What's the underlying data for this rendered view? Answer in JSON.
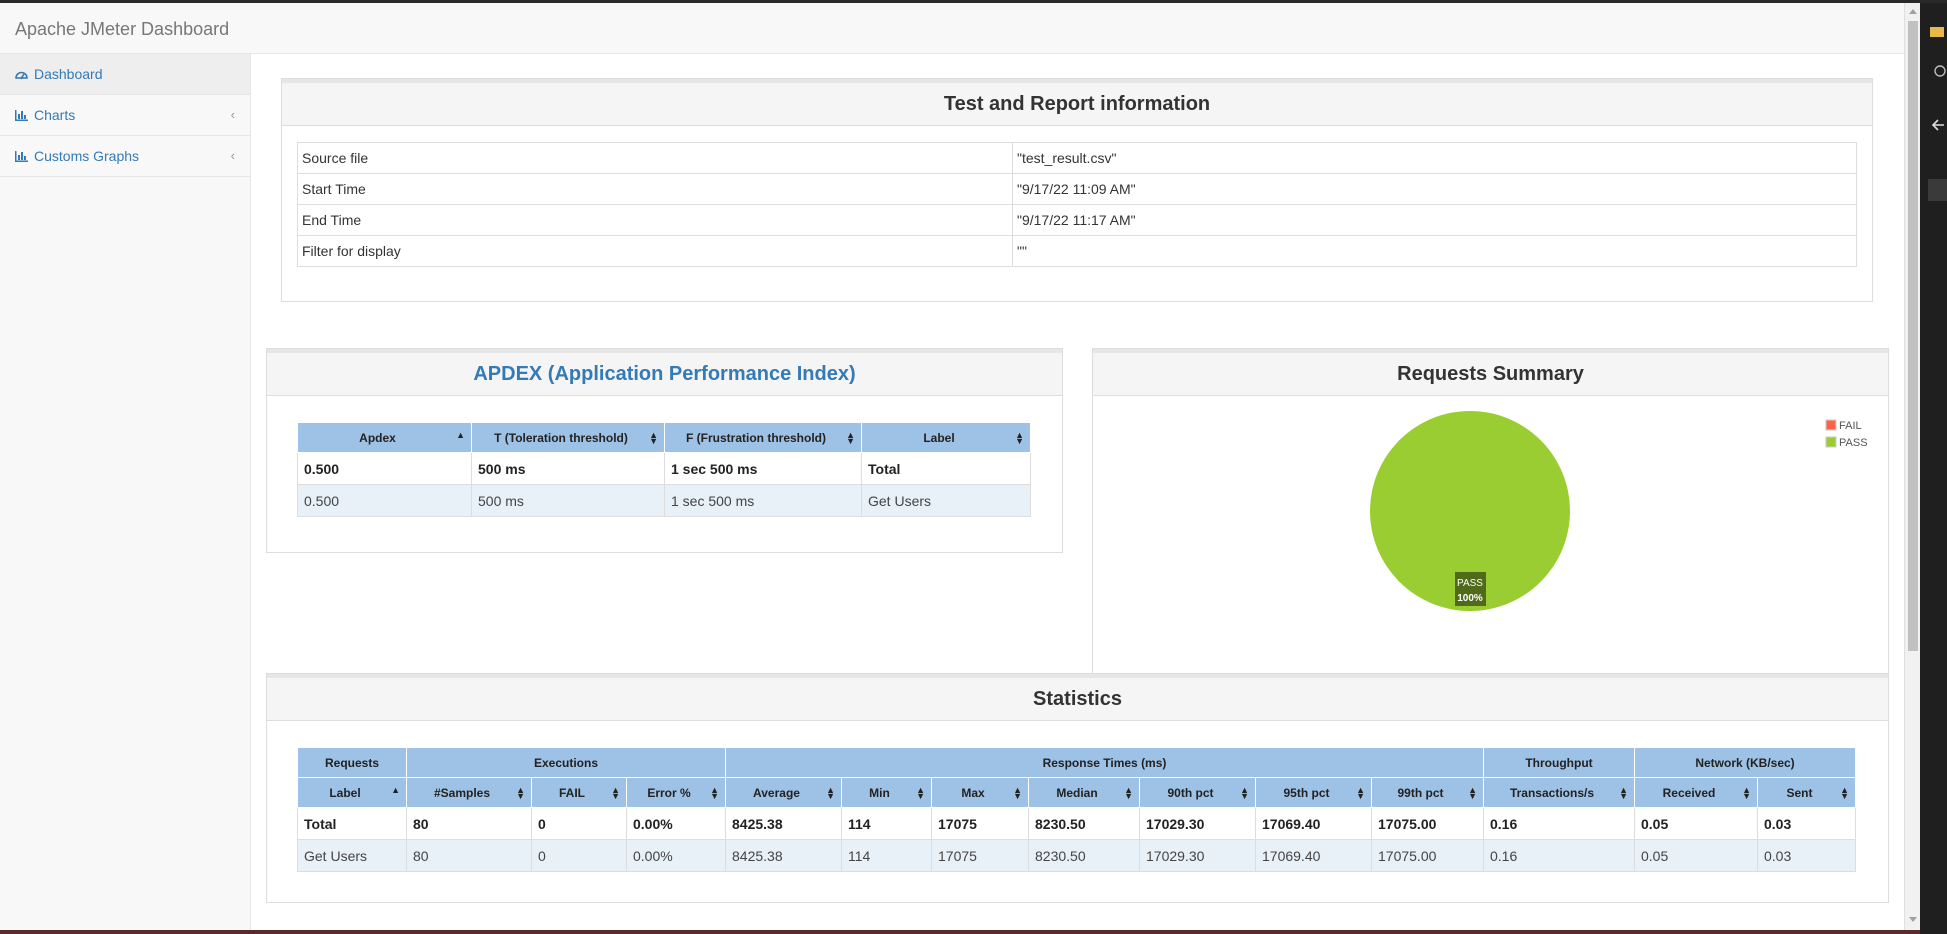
{
  "app": {
    "title": "Apache JMeter Dashboard"
  },
  "sidebar": {
    "items": [
      {
        "label": "Dashboard",
        "icon": "dashboard-icon"
      },
      {
        "label": "Charts",
        "icon": "bar-chart-icon"
      },
      {
        "label": "Customs Graphs",
        "icon": "bar-chart-icon"
      }
    ]
  },
  "info": {
    "title": "Test and Report information",
    "rows": [
      {
        "key": "Source file",
        "value": "\"test_result.csv\""
      },
      {
        "key": "Start Time",
        "value": "\"9/17/22 11:09 AM\""
      },
      {
        "key": "End Time",
        "value": "\"9/17/22 11:17 AM\""
      },
      {
        "key": "Filter for display",
        "value": "\"\""
      }
    ]
  },
  "apdex": {
    "title": "APDEX (Application Performance Index)",
    "headers": [
      "Apdex",
      "T (Toleration threshold)",
      "F (Frustration threshold)",
      "Label"
    ],
    "rows": [
      [
        "0.500",
        "500 ms",
        "1 sec 500 ms",
        "Total"
      ],
      [
        "0.500",
        "500 ms",
        "1 sec 500 ms",
        "Get Users"
      ]
    ]
  },
  "summary": {
    "title": "Requests Summary",
    "legend": [
      {
        "label": "FAIL",
        "color": "#ff6347"
      },
      {
        "label": "PASS",
        "color": "#9acd32"
      }
    ],
    "pie_label": "PASS",
    "pie_percent": "100%"
  },
  "chart_data": {
    "type": "pie",
    "title": "Requests Summary",
    "categories": [
      "FAIL",
      "PASS"
    ],
    "values": [
      0,
      100
    ]
  },
  "stats": {
    "title": "Statistics",
    "groups": [
      "Requests",
      "Executions",
      "Response Times (ms)",
      "Throughput",
      "Network (KB/sec)"
    ],
    "headers": [
      "Label",
      "#Samples",
      "FAIL",
      "Error %",
      "Average",
      "Min",
      "Max",
      "Median",
      "90th pct",
      "95th pct",
      "99th pct",
      "Transactions/s",
      "Received",
      "Sent"
    ],
    "rows": [
      [
        "Total",
        "80",
        "0",
        "0.00%",
        "8425.38",
        "114",
        "17075",
        "8230.50",
        "17029.30",
        "17069.40",
        "17075.00",
        "0.16",
        "0.05",
        "0.03"
      ],
      [
        "Get Users",
        "80",
        "0",
        "0.00%",
        "8425.38",
        "114",
        "17075",
        "8230.50",
        "17029.30",
        "17069.40",
        "17075.00",
        "0.16",
        "0.05",
        "0.03"
      ]
    ]
  },
  "colors": {
    "accent": "#337ab7",
    "header_blue": "#9ec2e6",
    "pass": "#9acd32",
    "fail": "#ff6347"
  }
}
